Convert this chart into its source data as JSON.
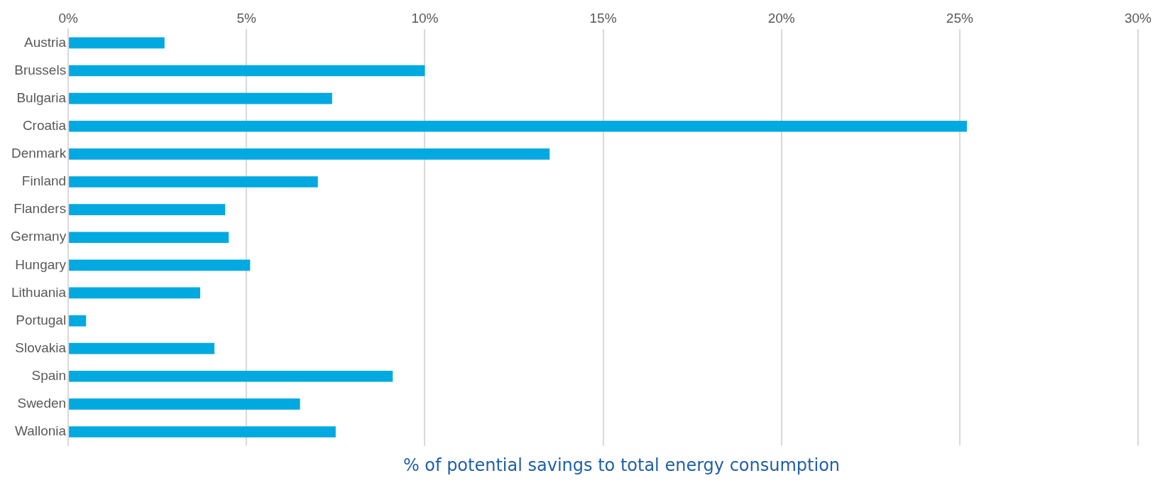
{
  "chart_data": {
    "type": "bar",
    "orientation": "horizontal",
    "xlabel": "% of potential savings to total energy consumption",
    "categories": [
      "Austria",
      "Brussels",
      "Bulgaria",
      "Croatia",
      "Denmark",
      "Finland",
      "Flanders",
      "Germany",
      "Hungary",
      "Lithuania",
      "Portugal",
      "Slovakia",
      "Spain",
      "Sweden",
      "Wallonia"
    ],
    "values": [
      2.7,
      10.0,
      7.4,
      25.2,
      13.5,
      7.0,
      4.4,
      4.5,
      5.1,
      3.7,
      0.5,
      4.1,
      9.1,
      6.5,
      7.5
    ],
    "color": "#00a9e0",
    "xlim": [
      0,
      30
    ],
    "xticks": [
      {
        "value": 0,
        "label": "0%"
      },
      {
        "value": 5,
        "label": "5%"
      },
      {
        "value": 10,
        "label": "10%"
      },
      {
        "value": 15,
        "label": "15%"
      },
      {
        "value": 20,
        "label": "20%"
      },
      {
        "value": 25,
        "label": "25%"
      },
      {
        "value": 30,
        "label": "30%"
      }
    ],
    "grid": "x",
    "legend": false
  }
}
